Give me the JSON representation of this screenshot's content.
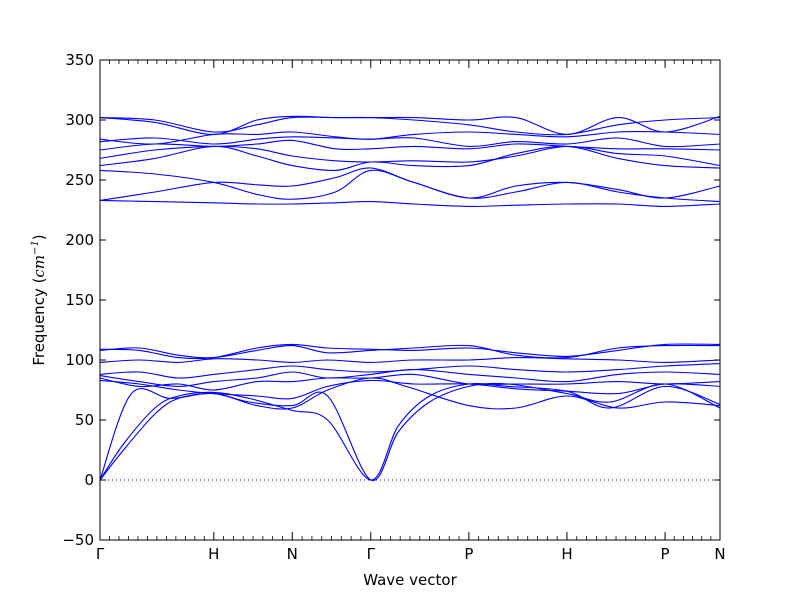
{
  "chart_data": {
    "type": "line",
    "xlabel": "Wave vector",
    "ylabel_prefix": "Frequency (",
    "ylabel_unit": "cm",
    "ylabel_exp": "−1",
    "ylabel_suffix": ")",
    "ylim": [
      -50,
      350
    ],
    "yticks": [
      -50,
      0,
      50,
      100,
      150,
      200,
      250,
      300,
      350
    ],
    "xlim": [
      0,
      7.9
    ],
    "xticks": [
      {
        "x": 0.0,
        "label": "Γ"
      },
      {
        "x": 1.45,
        "label": "H"
      },
      {
        "x": 2.45,
        "label": "N"
      },
      {
        "x": 3.45,
        "label": "Γ"
      },
      {
        "x": 4.7,
        "label": "P"
      },
      {
        "x": 5.95,
        "label": "H"
      },
      {
        "x": 7.2,
        "label": "P"
      },
      {
        "x": 7.9,
        "label": "N"
      }
    ],
    "line_color": "#0000ff",
    "zero_line": {
      "y": 0,
      "style": "dotted"
    },
    "series": [
      {
        "x": [
          0,
          0.3,
          0.7,
          1.0,
          1.45,
          1.9,
          2.45,
          2.9,
          3.45,
          3.8,
          4.2,
          4.7,
          5.2,
          5.95,
          6.5,
          7.2,
          7.9
        ],
        "values": [
          0,
          25,
          55,
          68,
          72,
          65,
          62,
          70,
          0,
          40,
          65,
          78,
          80,
          72,
          65,
          80,
          60
        ]
      },
      {
        "x": [
          0,
          0.3,
          0.7,
          1.0,
          1.45,
          1.9,
          2.45,
          2.9,
          3.45,
          3.8,
          4.2,
          4.7,
          5.2,
          5.95,
          6.5,
          7.2,
          7.9
        ],
        "values": [
          0,
          30,
          60,
          70,
          73,
          68,
          58,
          50,
          0,
          45,
          70,
          80,
          78,
          74,
          60,
          78,
          63
        ]
      },
      {
        "x": [
          0,
          0.4,
          0.9,
          1.45,
          2.0,
          2.45,
          2.9,
          3.45,
          3.9,
          4.7,
          5.3,
          5.95,
          6.6,
          7.2,
          7.9
        ],
        "values": [
          0,
          72,
          68,
          72,
          62,
          60,
          75,
          85,
          78,
          62,
          60,
          70,
          60,
          65,
          62
        ]
      },
      {
        "x": [
          0,
          0.5,
          1.0,
          1.45,
          2.0,
          2.45,
          2.9,
          3.45,
          4.0,
          4.7,
          5.3,
          5.95,
          6.6,
          7.2,
          7.9
        ],
        "values": [
          83,
          80,
          75,
          72,
          70,
          68,
          78,
          83,
          80,
          80,
          76,
          74,
          72,
          80,
          78
        ]
      },
      {
        "x": [
          0,
          0.5,
          1.0,
          1.45,
          2.0,
          2.45,
          2.9,
          3.45,
          4.0,
          4.7,
          5.3,
          5.95,
          6.6,
          7.2,
          7.9
        ],
        "values": [
          85,
          78,
          80,
          75,
          82,
          82,
          85,
          85,
          88,
          80,
          80,
          80,
          82,
          80,
          82
        ]
      },
      {
        "x": [
          0,
          0.5,
          1.0,
          1.45,
          2.0,
          2.45,
          2.9,
          3.45,
          4.0,
          4.7,
          5.3,
          5.95,
          6.6,
          7.2,
          7.9
        ],
        "values": [
          87,
          82,
          78,
          82,
          85,
          90,
          85,
          88,
          92,
          88,
          85,
          82,
          88,
          90,
          88
        ]
      },
      {
        "x": [
          0,
          0.5,
          1.0,
          1.45,
          2.0,
          2.45,
          2.9,
          3.45,
          4.0,
          4.7,
          5.3,
          5.95,
          6.6,
          7.2,
          7.9
        ],
        "values": [
          88,
          90,
          85,
          88,
          92,
          95,
          92,
          90,
          92,
          95,
          92,
          90,
          92,
          95,
          97
        ]
      },
      {
        "x": [
          0,
          0.5,
          1.0,
          1.45,
          2.0,
          2.45,
          2.9,
          3.45,
          4.0,
          4.7,
          5.3,
          5.95,
          6.6,
          7.2,
          7.9
        ],
        "values": [
          98,
          100,
          98,
          101,
          100,
          98,
          100,
          98,
          100,
          100,
          102,
          101,
          100,
          98,
          100
        ]
      },
      {
        "x": [
          0,
          0.5,
          1.0,
          1.45,
          2.0,
          2.45,
          2.9,
          3.45,
          4.0,
          4.7,
          5.3,
          5.95,
          6.6,
          7.2,
          7.9
        ],
        "values": [
          108,
          110,
          104,
          102,
          108,
          112,
          106,
          108,
          110,
          112,
          104,
          102,
          110,
          112,
          112
        ]
      },
      {
        "x": [
          0,
          0.5,
          1.0,
          1.45,
          2.0,
          2.45,
          2.9,
          3.45,
          4.0,
          4.7,
          5.3,
          5.95,
          6.6,
          7.2,
          7.9
        ],
        "values": [
          109,
          108,
          102,
          102,
          110,
          113,
          110,
          109,
          108,
          110,
          106,
          103,
          108,
          113,
          113
        ]
      },
      {
        "x": [
          0,
          0.7,
          1.45,
          2.0,
          2.45,
          3.0,
          3.45,
          4.0,
          4.7,
          5.3,
          5.95,
          6.6,
          7.2,
          7.9
        ],
        "values": [
          233,
          232,
          231,
          230,
          230,
          231,
          232,
          230,
          228,
          229,
          230,
          230,
          228,
          230
        ]
      },
      {
        "x": [
          0,
          0.7,
          1.45,
          2.0,
          2.45,
          3.0,
          3.45,
          4.0,
          4.7,
          5.3,
          5.95,
          6.6,
          7.2,
          7.9
        ],
        "values": [
          233,
          240,
          248,
          246,
          245,
          252,
          260,
          248,
          235,
          240,
          248,
          240,
          235,
          232
        ]
      },
      {
        "x": [
          0,
          0.7,
          1.45,
          2.0,
          2.45,
          3.0,
          3.45,
          4.0,
          4.7,
          5.3,
          5.95,
          6.6,
          7.2,
          7.9
        ],
        "values": [
          258,
          255,
          248,
          238,
          234,
          240,
          258,
          248,
          235,
          245,
          248,
          242,
          235,
          245
        ]
      },
      {
        "x": [
          0,
          0.7,
          1.45,
          2.0,
          2.45,
          3.0,
          3.45,
          4.0,
          4.7,
          5.3,
          5.95,
          6.6,
          7.2,
          7.9
        ],
        "values": [
          262,
          268,
          278,
          270,
          262,
          258,
          265,
          262,
          262,
          272,
          278,
          268,
          262,
          260
        ]
      },
      {
        "x": [
          0,
          0.7,
          1.45,
          2.0,
          2.45,
          3.0,
          3.45,
          4.0,
          4.7,
          5.3,
          5.95,
          6.6,
          7.2,
          7.9
        ],
        "values": [
          268,
          275,
          278,
          276,
          270,
          266,
          265,
          266,
          265,
          270,
          278,
          272,
          270,
          262
        ]
      },
      {
        "x": [
          0,
          0.7,
          1.45,
          2.0,
          2.45,
          3.0,
          3.45,
          4.0,
          4.7,
          5.3,
          5.95,
          6.6,
          7.2,
          7.9
        ],
        "values": [
          275,
          280,
          278,
          280,
          283,
          276,
          276,
          278,
          276,
          280,
          278,
          276,
          276,
          275
        ]
      },
      {
        "x": [
          0,
          0.7,
          1.45,
          2.0,
          2.45,
          3.0,
          3.45,
          4.0,
          4.7,
          5.3,
          5.95,
          6.6,
          7.2,
          7.9
        ],
        "values": [
          282,
          285,
          280,
          284,
          286,
          285,
          284,
          285,
          278,
          282,
          280,
          285,
          278,
          280
        ]
      },
      {
        "x": [
          0,
          0.7,
          1.45,
          2.0,
          2.45,
          3.0,
          3.45,
          4.0,
          4.7,
          5.3,
          5.95,
          6.6,
          7.2,
          7.9
        ],
        "values": [
          284,
          280,
          288,
          288,
          290,
          286,
          284,
          288,
          290,
          288,
          286,
          290,
          290,
          288
        ]
      },
      {
        "x": [
          0,
          0.7,
          1.45,
          2.0,
          2.45,
          3.0,
          3.45,
          4.0,
          4.7,
          5.3,
          5.95,
          6.6,
          7.2,
          7.9
        ],
        "values": [
          302,
          300,
          290,
          296,
          302,
          302,
          302,
          300,
          296,
          290,
          288,
          296,
          300,
          302
        ]
      },
      {
        "x": [
          0,
          0.7,
          1.45,
          2.0,
          2.45,
          3.0,
          3.45,
          4.0,
          4.7,
          5.3,
          5.95,
          6.6,
          7.2,
          7.9
        ],
        "values": [
          302,
          298,
          288,
          300,
          303,
          302,
          302,
          302,
          300,
          302,
          288,
          302,
          290,
          303
        ]
      }
    ]
  }
}
